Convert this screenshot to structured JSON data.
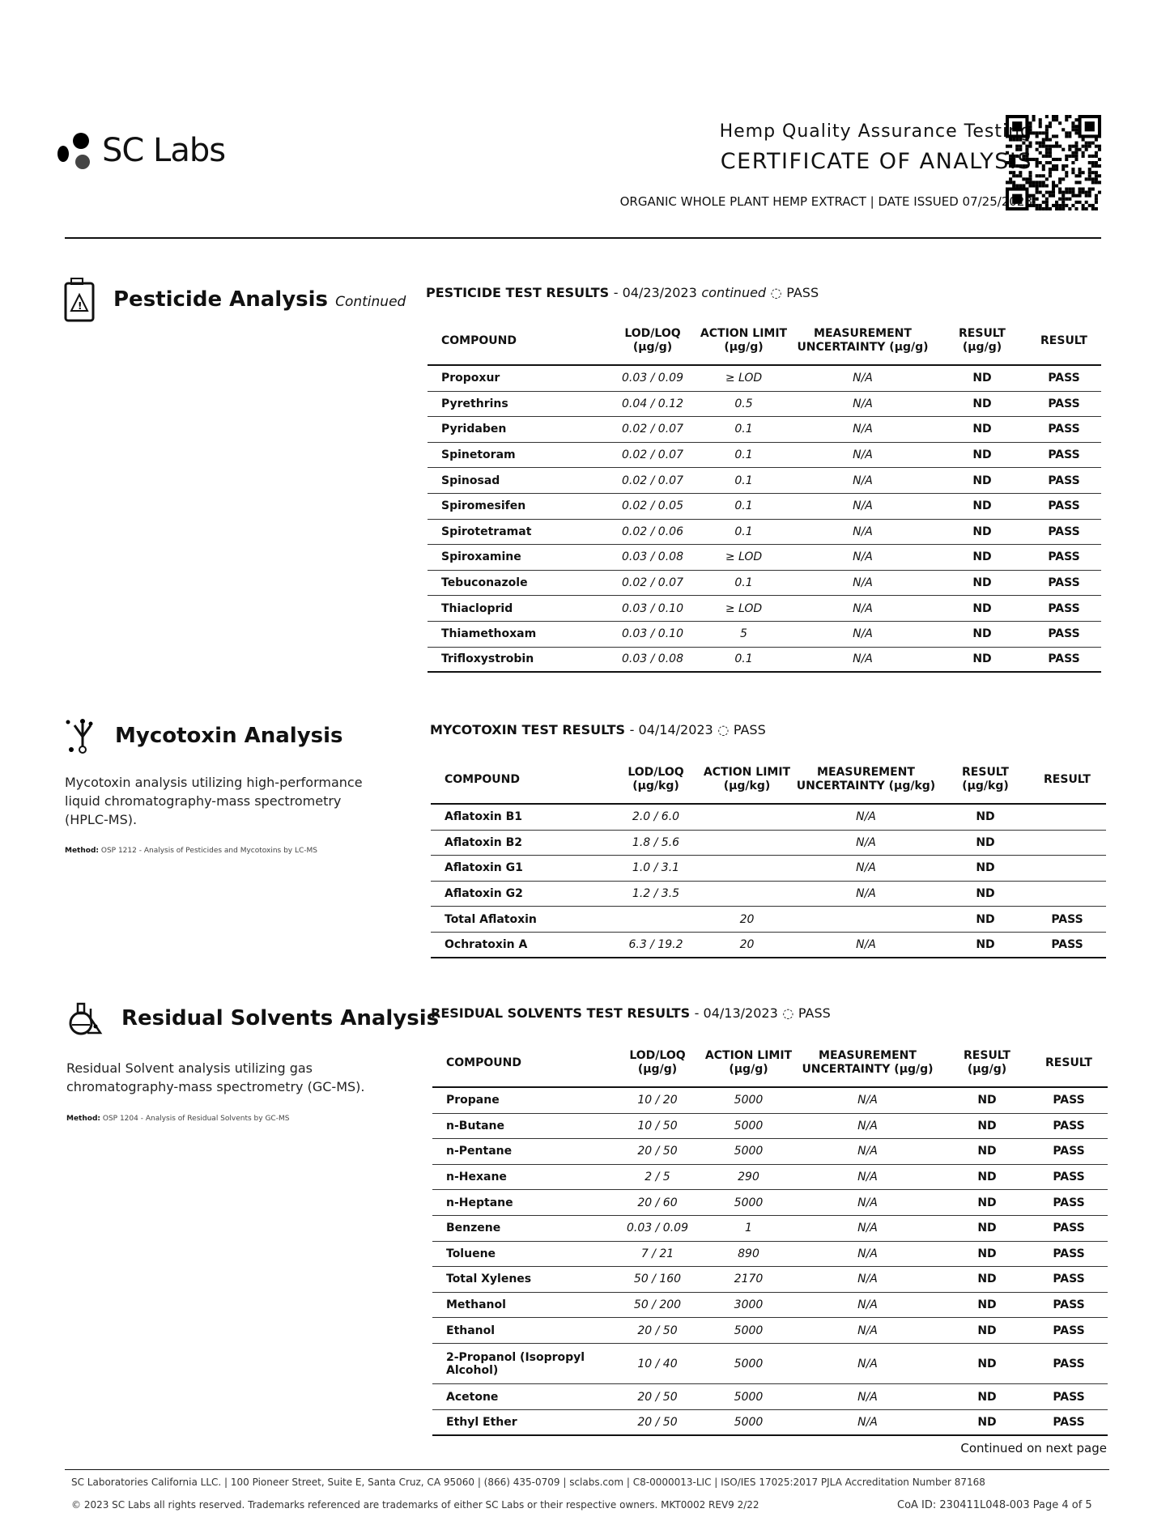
{
  "header": {
    "brand": "SC Labs",
    "subtitle": "Hemp Quality Assurance Testing",
    "title": "CERTIFICATE OF ANALYSIS",
    "product": "ORGANIC WHOLE PLANT HEMP EXTRACT",
    "date_issued": "DATE ISSUED 07/25/2023"
  },
  "columns_ug_g": [
    "COMPOUND",
    "LOD/LOQ (µg/g)",
    "ACTION LIMIT (µg/g)",
    "MEASUREMENT UNCERTAINTY (µg/g)",
    "RESULT (µg/g)",
    "RESULT"
  ],
  "columns_ug_kg": [
    "COMPOUND",
    "LOD/LOQ (µg/kg)",
    "ACTION LIMIT (µg/kg)",
    "MEASUREMENT UNCERTAINTY (µg/kg)",
    "RESULT (µg/kg)",
    "RESULT"
  ],
  "pesticide": {
    "title": "Pesticide Analysis",
    "title_suffix": "Continued",
    "table_title": "PESTICIDE TEST RESULTS",
    "table_date": "- 04/23/2023",
    "continued": "continued",
    "status": "PASS",
    "rows": [
      [
        "Propoxur",
        "0.03 / 0.09",
        "≥ LOD",
        "N/A",
        "ND",
        "PASS"
      ],
      [
        "Pyrethrins",
        "0.04 / 0.12",
        "0.5",
        "N/A",
        "ND",
        "PASS"
      ],
      [
        "Pyridaben",
        "0.02 / 0.07",
        "0.1",
        "N/A",
        "ND",
        "PASS"
      ],
      [
        "Spinetoram",
        "0.02 / 0.07",
        "0.1",
        "N/A",
        "ND",
        "PASS"
      ],
      [
        "Spinosad",
        "0.02 / 0.07",
        "0.1",
        "N/A",
        "ND",
        "PASS"
      ],
      [
        "Spiromesifen",
        "0.02 / 0.05",
        "0.1",
        "N/A",
        "ND",
        "PASS"
      ],
      [
        "Spirotetramat",
        "0.02 / 0.06",
        "0.1",
        "N/A",
        "ND",
        "PASS"
      ],
      [
        "Spiroxamine",
        "0.03 / 0.08",
        "≥ LOD",
        "N/A",
        "ND",
        "PASS"
      ],
      [
        "Tebuconazole",
        "0.02 / 0.07",
        "0.1",
        "N/A",
        "ND",
        "PASS"
      ],
      [
        "Thiacloprid",
        "0.03 / 0.10",
        "≥ LOD",
        "N/A",
        "ND",
        "PASS"
      ],
      [
        "Thiamethoxam",
        "0.03 / 0.10",
        "5",
        "N/A",
        "ND",
        "PASS"
      ],
      [
        "Trifloxystrobin",
        "0.03 / 0.08",
        "0.1",
        "N/A",
        "ND",
        "PASS"
      ]
    ]
  },
  "mycotoxin": {
    "title": "Mycotoxin Analysis",
    "description": "Mycotoxin analysis utilizing high-performance liquid chromatography-mass spectrometry (HPLC-MS).",
    "method_label": "Method:",
    "method": "OSP 1212 - Analysis of Pesticides and Mycotoxins by LC-MS",
    "table_title": "MYCOTOXIN TEST RESULTS",
    "table_date": "- 04/14/2023",
    "status": "PASS",
    "rows": [
      [
        "Aflatoxin B1",
        "2.0 / 6.0",
        "",
        "N/A",
        "ND",
        ""
      ],
      [
        "Aflatoxin B2",
        "1.8 / 5.6",
        "",
        "N/A",
        "ND",
        ""
      ],
      [
        "Aflatoxin G1",
        "1.0 / 3.1",
        "",
        "N/A",
        "ND",
        ""
      ],
      [
        "Aflatoxin G2",
        "1.2 / 3.5",
        "",
        "N/A",
        "ND",
        ""
      ],
      [
        "Total Aflatoxin",
        "",
        "20",
        "",
        "ND",
        "PASS"
      ],
      [
        "Ochratoxin A",
        "6.3 / 19.2",
        "20",
        "N/A",
        "ND",
        "PASS"
      ]
    ]
  },
  "solvents": {
    "title": "Residual Solvents Analysis",
    "description": "Residual Solvent analysis utilizing gas chromatography-mass spectrometry (GC-MS).",
    "method_label": "Method:",
    "method": "OSP 1204 - Analysis of Residual Solvents by GC-MS",
    "table_title": "RESIDUAL SOLVENTS TEST RESULTS",
    "table_date": "- 04/13/2023",
    "status": "PASS",
    "rows": [
      [
        "Propane",
        "10 / 20",
        "5000",
        "N/A",
        "ND",
        "PASS"
      ],
      [
        "n-Butane",
        "10 / 50",
        "5000",
        "N/A",
        "ND",
        "PASS"
      ],
      [
        "n-Pentane",
        "20 / 50",
        "5000",
        "N/A",
        "ND",
        "PASS"
      ],
      [
        "n-Hexane",
        "2 / 5",
        "290",
        "N/A",
        "ND",
        "PASS"
      ],
      [
        "n-Heptane",
        "20 / 60",
        "5000",
        "N/A",
        "ND",
        "PASS"
      ],
      [
        "Benzene",
        "0.03 / 0.09",
        "1",
        "N/A",
        "ND",
        "PASS"
      ],
      [
        "Toluene",
        "7 / 21",
        "890",
        "N/A",
        "ND",
        "PASS"
      ],
      [
        "Total Xylenes",
        "50 / 160",
        "2170",
        "N/A",
        "ND",
        "PASS"
      ],
      [
        "Methanol",
        "50 / 200",
        "3000",
        "N/A",
        "ND",
        "PASS"
      ],
      [
        "Ethanol",
        "20 / 50",
        "5000",
        "N/A",
        "ND",
        "PASS"
      ],
      [
        "2-Propanol (Isopropyl Alcohol)",
        "10 / 40",
        "5000",
        "N/A",
        "ND",
        "PASS"
      ],
      [
        "Acetone",
        "20 / 50",
        "5000",
        "N/A",
        "ND",
        "PASS"
      ],
      [
        "Ethyl Ether",
        "20 / 50",
        "5000",
        "N/A",
        "ND",
        "PASS"
      ]
    ]
  },
  "footer": {
    "continued": "Continued on next page",
    "address": "SC Laboratories California LLC. | 100 Pioneer Street, Suite E, Santa Cruz, CA 95060 | (866) 435-0709 | sclabs.com | C8-0000013-LIC | ISO/IES 17025:2017 PJLA Accreditation Number 87168",
    "copyright": "© 2023 SC Labs all rights reserved. Trademarks referenced are trademarks of either SC Labs or their respective owners. MKT0002 REV9 2/22",
    "coa_id": "CoA ID: 230411L048-003",
    "page": "Page 4 of 5"
  }
}
